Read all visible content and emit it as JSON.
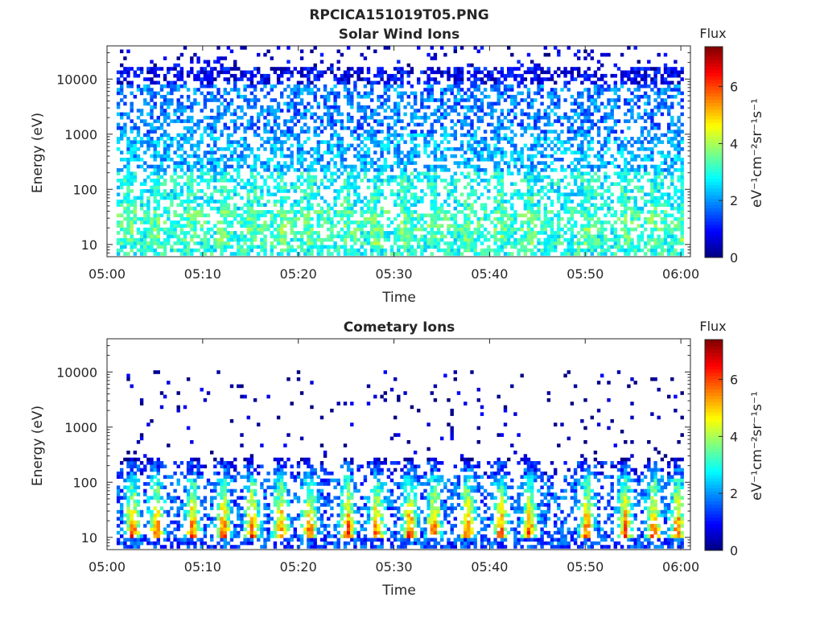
{
  "figure": {
    "title": "RPCICA151019T05.PNG"
  },
  "colorbar": {
    "label": "Flux",
    "unit_label": "eV⁻¹cm⁻²sr⁻¹s⁻¹",
    "ticks": [
      "0",
      "2",
      "4",
      "6"
    ],
    "range": [
      0,
      7.4
    ],
    "colormap": "jet"
  },
  "chart_data": [
    {
      "type": "heatmap",
      "title": "Solar Wind Ions",
      "xlabel": "Time",
      "ylabel": "Energy (eV)",
      "x_ticks": [
        "05:00",
        "05:10",
        "05:20",
        "05:30",
        "05:40",
        "05:50",
        "06:00"
      ],
      "y_ticks": [
        "10",
        "100",
        "1000",
        "10000"
      ],
      "y_scale": "log",
      "xlim": [
        "05:00",
        "06:01"
      ],
      "ylim": [
        6,
        40000
      ],
      "time_columns": 170,
      "energy_rows": 60,
      "bands": [
        {
          "log_e_min": 0.8,
          "log_e_max": 1.2,
          "flux": 3.0,
          "density": 0.72
        },
        {
          "log_e_min": 1.2,
          "log_e_max": 1.6,
          "flux": 3.2,
          "density": 0.55
        },
        {
          "log_e_min": 1.6,
          "log_e_max": 2.3,
          "flux": 2.8,
          "density": 0.45
        },
        {
          "log_e_min": 2.3,
          "log_e_max": 3.0,
          "flux": 2.2,
          "density": 0.5
        },
        {
          "log_e_min": 3.0,
          "log_e_max": 3.9,
          "flux": 1.8,
          "density": 0.48
        },
        {
          "log_e_min": 3.9,
          "log_e_max": 4.2,
          "flux": 0.8,
          "density": 0.55
        },
        {
          "log_e_min": 4.2,
          "log_e_max": 4.6,
          "flux": 0.6,
          "density": 0.12
        }
      ],
      "bursts_minutes": [
        2,
        5,
        8.5,
        12,
        15,
        18,
        21,
        25,
        28,
        31,
        34,
        37.5,
        41,
        44,
        50,
        54,
        57,
        60
      ],
      "burst_flux": 3.6
    },
    {
      "type": "heatmap",
      "title": "Cometary Ions",
      "xlabel": "Time",
      "ylabel": "Energy (eV)",
      "x_ticks": [
        "05:00",
        "05:10",
        "05:20",
        "05:30",
        "05:40",
        "05:50",
        "06:00"
      ],
      "y_ticks": [
        "10",
        "100",
        "1000",
        "10000"
      ],
      "y_scale": "log",
      "xlim": [
        "05:00",
        "06:01"
      ],
      "ylim": [
        6,
        40000
      ],
      "time_columns": 170,
      "energy_rows": 60,
      "bands": [
        {
          "log_e_min": 0.8,
          "log_e_max": 1.0,
          "flux": 1.4,
          "density": 0.6
        },
        {
          "log_e_min": 1.0,
          "log_e_max": 2.1,
          "flux": 1.6,
          "density": 0.45
        },
        {
          "log_e_min": 2.1,
          "log_e_max": 2.35,
          "flux": 1.0,
          "density": 0.3
        },
        {
          "log_e_min": 2.35,
          "log_e_max": 4.0,
          "flux": 0.3,
          "density": 0.04
        }
      ],
      "bursts_minutes": [
        2.5,
        5,
        8.8,
        12,
        15,
        18,
        21,
        25,
        28,
        31.5,
        34,
        37.5,
        41,
        44,
        50,
        54,
        57,
        59.5
      ],
      "burst_flux": 6.5
    }
  ]
}
